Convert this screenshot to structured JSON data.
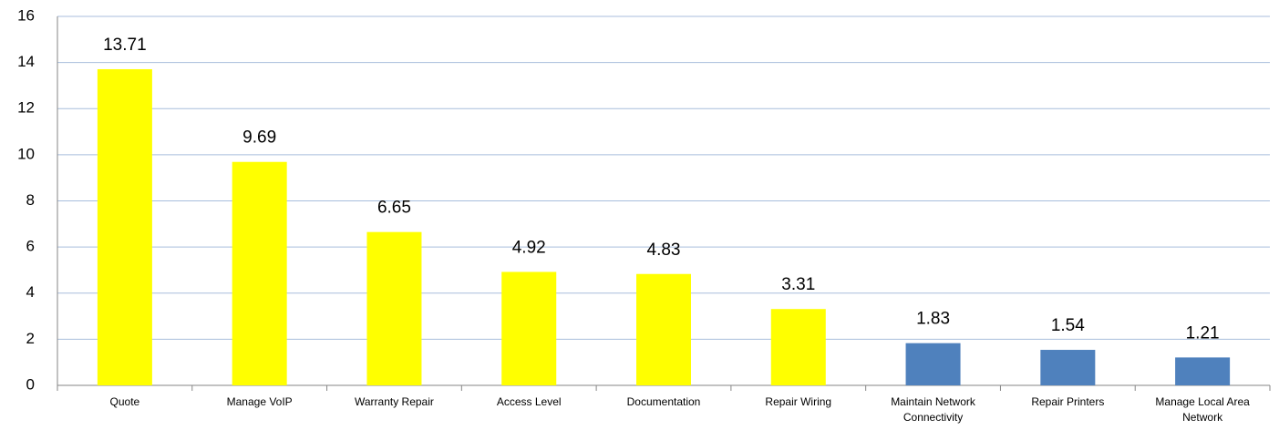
{
  "chart_data": {
    "type": "bar",
    "categories": [
      "Quote",
      "Manage VoIP",
      "Warranty Repair",
      "Access Level",
      "Documentation",
      "Repair Wiring",
      "Maintain Network Connectivity",
      "Repair Printers",
      "Manage Local Area Network"
    ],
    "values": [
      13.71,
      9.69,
      6.65,
      4.92,
      4.83,
      3.31,
      1.83,
      1.54,
      1.21
    ],
    "colors": [
      "#ffff00",
      "#ffff00",
      "#ffff00",
      "#ffff00",
      "#ffff00",
      "#ffff00",
      "#4f81bd",
      "#4f81bd",
      "#4f81bd"
    ],
    "ylim": [
      0,
      16
    ],
    "yticks": [
      0,
      2,
      4,
      6,
      8,
      10,
      12,
      14,
      16
    ],
    "grid": true
  }
}
